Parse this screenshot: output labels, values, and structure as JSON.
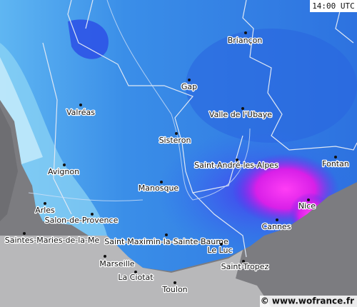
{
  "header": {
    "time": "14:00 UTC"
  },
  "cities": [
    {
      "label": "Briançon"
    },
    {
      "label": "Gap"
    },
    {
      "label": "Valréas"
    },
    {
      "label": "Valle de l'Ubaye"
    },
    {
      "label": "Sisteron"
    },
    {
      "label": "Saint-André-les-Alpes"
    },
    {
      "label": "Fontan"
    },
    {
      "label": "Avignon"
    },
    {
      "label": "Manosque"
    },
    {
      "label": "Arles"
    },
    {
      "label": "Nice"
    },
    {
      "label": "Salon-de-Provence"
    },
    {
      "label": "Cannes"
    },
    {
      "label": "Saintes-Maries-de-la-Me"
    },
    {
      "label": "Saint-Maximin-la-Sainte-Baume"
    },
    {
      "label": "Le Luc"
    },
    {
      "label": "Marseille"
    },
    {
      "label": "Saint-Tropez"
    },
    {
      "label": "La Ciotat"
    },
    {
      "label": "Toulon"
    }
  ],
  "footer": {
    "credit": "© www.wofrance.fr"
  }
}
